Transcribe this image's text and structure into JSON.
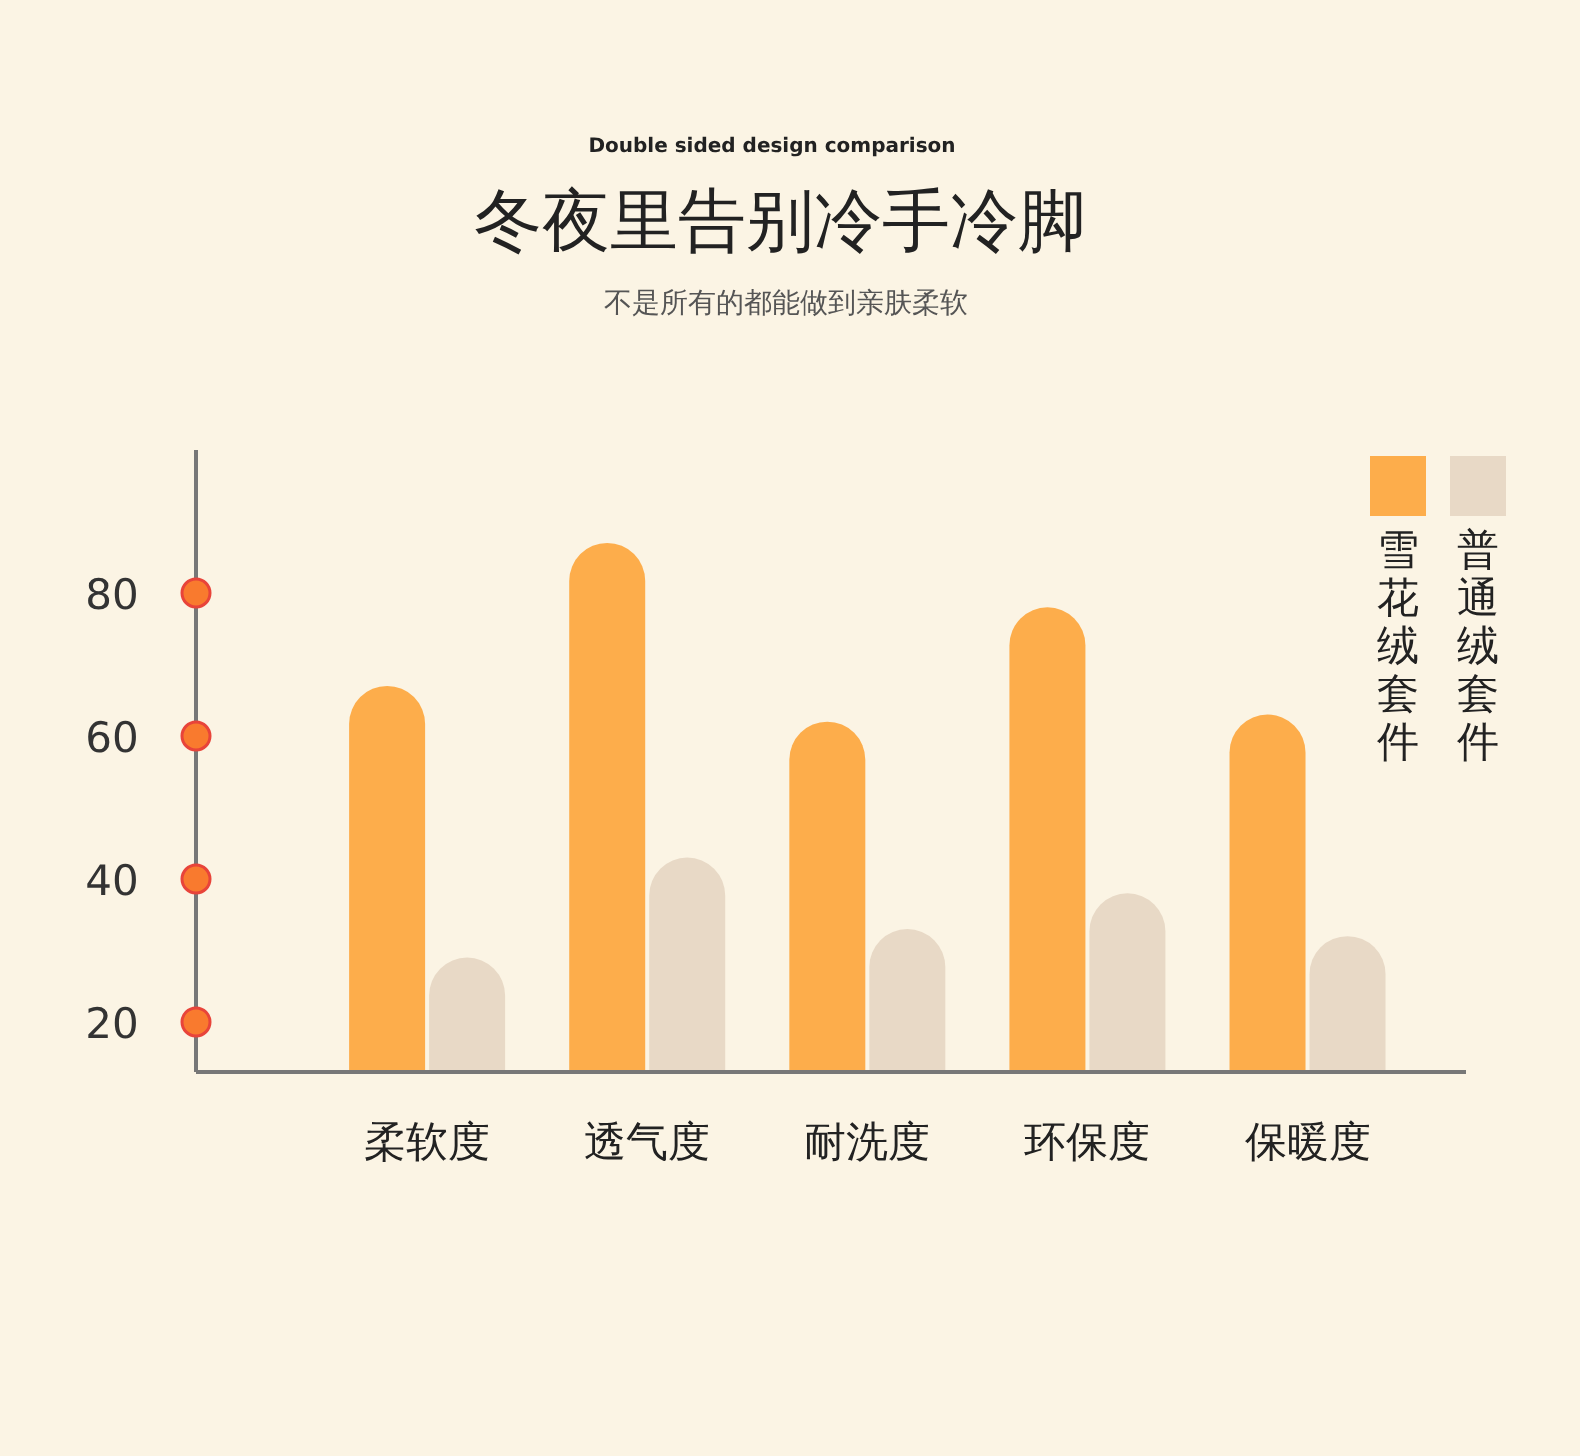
{
  "chart_data": {
    "type": "bar",
    "title": "冬夜里告别冷手冷脚",
    "subtitle": "不是所有的都能做到亲肤柔软",
    "annotations": [
      "Double sided design comparison"
    ],
    "categories": [
      "柔软度",
      "透气度",
      "耐洗度",
      "环保度",
      "保暖度"
    ],
    "series": [
      {
        "name": "雪花绒套件",
        "color": "#fdad4b",
        "values": [
          67,
          87,
          62,
          78,
          63
        ]
      },
      {
        "name": "普通绒套件",
        "color": "#e8d9c6",
        "values": [
          29,
          43,
          33,
          38,
          32
        ]
      }
    ],
    "ylim": [
      13,
      100
    ],
    "yticks": [
      20,
      40,
      60,
      80
    ],
    "legend": "top right",
    "grid": false
  }
}
